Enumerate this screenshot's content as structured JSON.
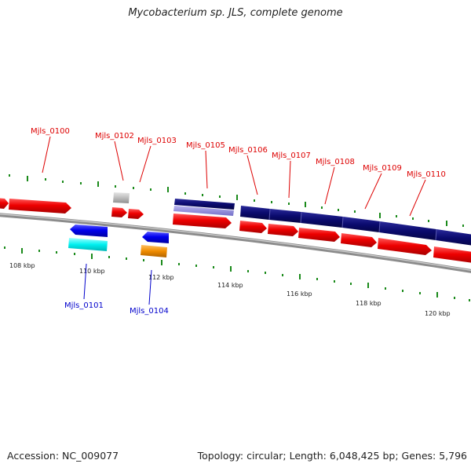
{
  "title": "Mycobacterium sp. JLS, complete genome",
  "footer": {
    "accession": "Accession: NC_009077",
    "summary": "Topology: circular; Length: 6,048,425 bp; Genes: 5,796"
  },
  "colors": {
    "backbone": "#8c8c8c",
    "forward_gene": "#ee0000",
    "reverse_gene": "#0000ee",
    "cyan_gene": "#00f0f0",
    "orange_gene": "#f08c00",
    "grey_gene": "#bdbdbd",
    "navy_block": "#0a0a6e",
    "lavender_block": "#8a86d8",
    "tick": "#1a8a1a",
    "label_forward": "#dd0000",
    "label_reverse": "#0000cc"
  },
  "scale": {
    "unit": "kbp",
    "major_ticks": [
      {
        "kbp": 108,
        "label": "108 kbp"
      },
      {
        "kbp": 110,
        "label": "110 kbp"
      },
      {
        "kbp": 112,
        "label": "112 kbp"
      },
      {
        "kbp": 114,
        "label": "114 kbp"
      },
      {
        "kbp": 116,
        "label": "116 kbp"
      },
      {
        "kbp": 118,
        "label": "118 kbp"
      },
      {
        "kbp": 120,
        "label": "120 kbp"
      }
    ]
  },
  "genes": [
    {
      "id": "Mjls_0100",
      "strand": "+",
      "color": "forward_gene",
      "label": "Mjls_0100"
    },
    {
      "id": "Mjls_0101",
      "strand": "-",
      "color": "reverse_gene",
      "label": "Mjls_0101"
    },
    {
      "id": "Mjls_0102",
      "strand": "+",
      "color": "forward_gene",
      "label": "Mjls_0102"
    },
    {
      "id": "Mjls_0103",
      "strand": "+",
      "color": "forward_gene",
      "label": "Mjls_0103"
    },
    {
      "id": "Mjls_0104",
      "strand": "-",
      "color": "reverse_gene",
      "label": "Mjls_0104"
    },
    {
      "id": "Mjls_0105",
      "strand": "+",
      "color": "forward_gene",
      "label": "Mjls_0105"
    },
    {
      "id": "Mjls_0106",
      "strand": "+",
      "color": "forward_gene",
      "label": "Mjls_0106"
    },
    {
      "id": "Mjls_0107",
      "strand": "+",
      "color": "forward_gene",
      "label": "Mjls_0107"
    },
    {
      "id": "Mjls_0108",
      "strand": "+",
      "color": "forward_gene",
      "label": "Mjls_0108"
    },
    {
      "id": "Mjls_0109",
      "strand": "+",
      "color": "forward_gene",
      "label": "Mjls_0109"
    },
    {
      "id": "Mjls_0110",
      "strand": "+",
      "color": "forward_gene",
      "label": "Mjls_0110"
    }
  ]
}
